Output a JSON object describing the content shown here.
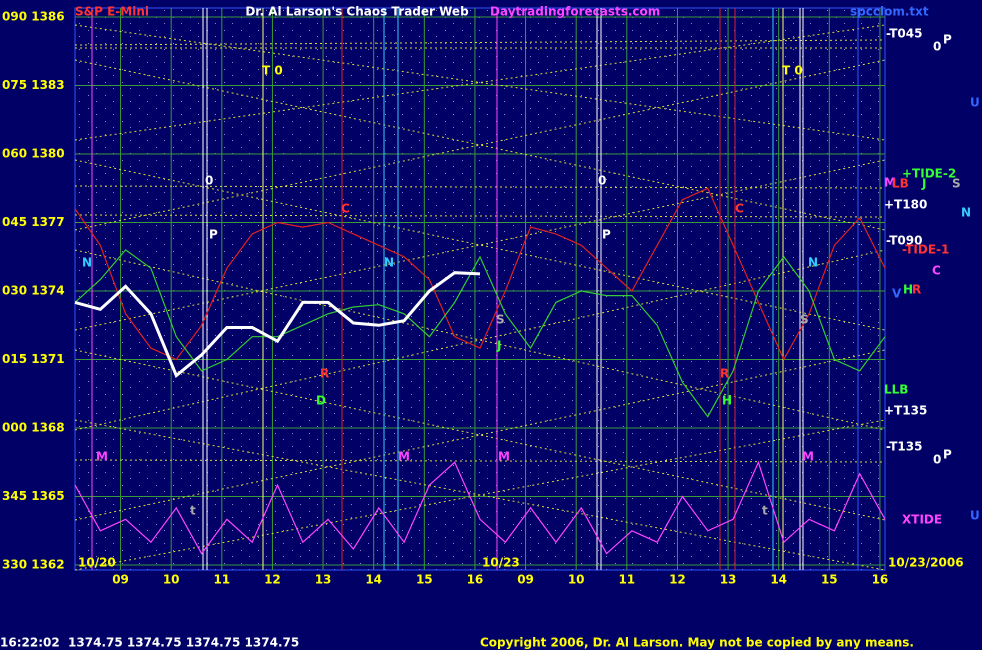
{
  "chart_data": {
    "type": "line",
    "title": "Dr. Al Larson's Chaos Trader Web",
    "subtitle": "S&P E-Mini",
    "source": "Daytradingforecasts.com",
    "file": "spcclom.txt",
    "dates": [
      "10/20",
      "10/23",
      "10/23/2006"
    ],
    "x": [
      0.1,
      0.6,
      1.1,
      1.6,
      2.1,
      2.6,
      3.1,
      3.6,
      4.1,
      4.6,
      5.1,
      5.6,
      6.1,
      6.6,
      7.1,
      7.6,
      8.1,
      8.6,
      9.1,
      9.6,
      10.1,
      10.6,
      11.1,
      11.6,
      12.1,
      12.6,
      13.1,
      13.6,
      14.1,
      14.6,
      15.1,
      15.6,
      16.1
    ],
    "xlim": [
      0.1,
      16.1
    ],
    "xticks": [
      {
        "value": 1,
        "label": "09"
      },
      {
        "value": 2,
        "label": "10"
      },
      {
        "value": 3,
        "label": "11"
      },
      {
        "value": 4,
        "label": "12"
      },
      {
        "value": 5,
        "label": "13"
      },
      {
        "value": 6,
        "label": "14"
      },
      {
        "value": 7,
        "label": "15"
      },
      {
        "value": 8,
        "label": "16"
      },
      {
        "value": 9,
        "label": "09"
      },
      {
        "value": 10,
        "label": "10"
      },
      {
        "value": 11,
        "label": "11"
      },
      {
        "value": 12,
        "label": "12"
      },
      {
        "value": 13,
        "label": "13"
      },
      {
        "value": 14,
        "label": "14"
      },
      {
        "value": 15,
        "label": "15"
      },
      {
        "value": 16,
        "label": "16"
      }
    ],
    "values": [
      1373.5,
      1373.2,
      1374.2,
      1373,
      1370.3,
      1371.2,
      1372.4,
      1372.4,
      1371.8,
      1373.5,
      1373.5,
      1372.6,
      1372.5,
      1372.7,
      1374,
      1374.8,
      1374.75,
      null,
      null,
      null,
      null,
      null,
      null,
      null,
      null,
      null,
      null,
      null,
      null,
      null,
      null,
      null,
      null
    ],
    "color": "#ffffff",
    "series": [
      {
        "name": "-TIDE-1",
        "color": "#e02020",
        "values": [
          1377.6,
          1376,
          1373,
          1371.5,
          1371,
          1372.5,
          1375,
          1376.5,
          1377,
          1376.8,
          1377,
          1376.5,
          1376,
          1375.5,
          1374.5,
          1372,
          1371.5,
          1374,
          1376.8,
          1376.5,
          1376,
          1375,
          1374,
          1376,
          1378,
          1378.5,
          1376,
          1373.5,
          1371,
          1373,
          1376,
          1377.2,
          1375
        ]
      },
      {
        "name": "+TIDE-2",
        "color": "#33cc33",
        "values": [
          1373.5,
          1374.5,
          1375.8,
          1375,
          1372,
          1370.5,
          1371,
          1372,
          1372,
          1372.5,
          1373,
          1373.3,
          1373.4,
          1373,
          1372,
          1373.5,
          1375.5,
          1373,
          1371.5,
          1373.5,
          1374,
          1373.8,
          1373.8,
          1372.5,
          1370,
          1368.5,
          1370.5,
          1374,
          1375.5,
          1374,
          1371,
          1370.5,
          1372
        ]
      },
      {
        "name": "XTIDE",
        "color": "#ff44ff",
        "values": [
          1365.5,
          1363.5,
          1364,
          1363,
          1364.5,
          1362.5,
          1364,
          1363,
          1365.5,
          1363,
          1364,
          1362.7,
          1364.5,
          1363,
          1365.5,
          1366.5,
          1364,
          1363,
          1364.5,
          1363,
          1364.5,
          1362.5,
          1363.5,
          1363,
          1365,
          1363.5,
          1364,
          1366.5,
          1363,
          1364,
          1363.5,
          1366,
          1364
        ]
      }
    ],
    "ylim": [
      1362,
      1386
    ],
    "yticks": [
      {
        "value": 1362,
        "label": "330 1362"
      },
      {
        "value": 1365,
        "label": "345 1365"
      },
      {
        "value": 1368,
        "label": "000 1368"
      },
      {
        "value": 1371,
        "label": "015 1371"
      },
      {
        "value": 1374,
        "label": "030 1374"
      },
      {
        "value": 1377,
        "label": "045 1377"
      },
      {
        "value": 1380,
        "label": "060 1380"
      },
      {
        "value": 1383,
        "label": "075 1383"
      },
      {
        "value": 1386,
        "label": "090 1386"
      }
    ],
    "grid": true,
    "annotations": [
      "T 0",
      "T 0",
      "0",
      "P",
      "C",
      "N",
      "N",
      "R",
      "D",
      "S",
      "J",
      "M",
      "M",
      "M",
      "t",
      "0",
      "P",
      "C",
      "N",
      "S",
      "R",
      "H",
      "M",
      "t",
      "-T045",
      "0",
      "P",
      "U",
      "M",
      "LB",
      "J",
      "S",
      "+T180",
      "N",
      "-T090",
      "C",
      "V",
      "H",
      "R",
      "LLB",
      "+T135",
      "-T135",
      "0",
      "P",
      "U"
    ],
    "status": "16:22:02  1374.75 1374.75 1374.75 1374.75",
    "copyright": "Copyright 2006, Dr. Al Larson. May not be copied by any means."
  }
}
